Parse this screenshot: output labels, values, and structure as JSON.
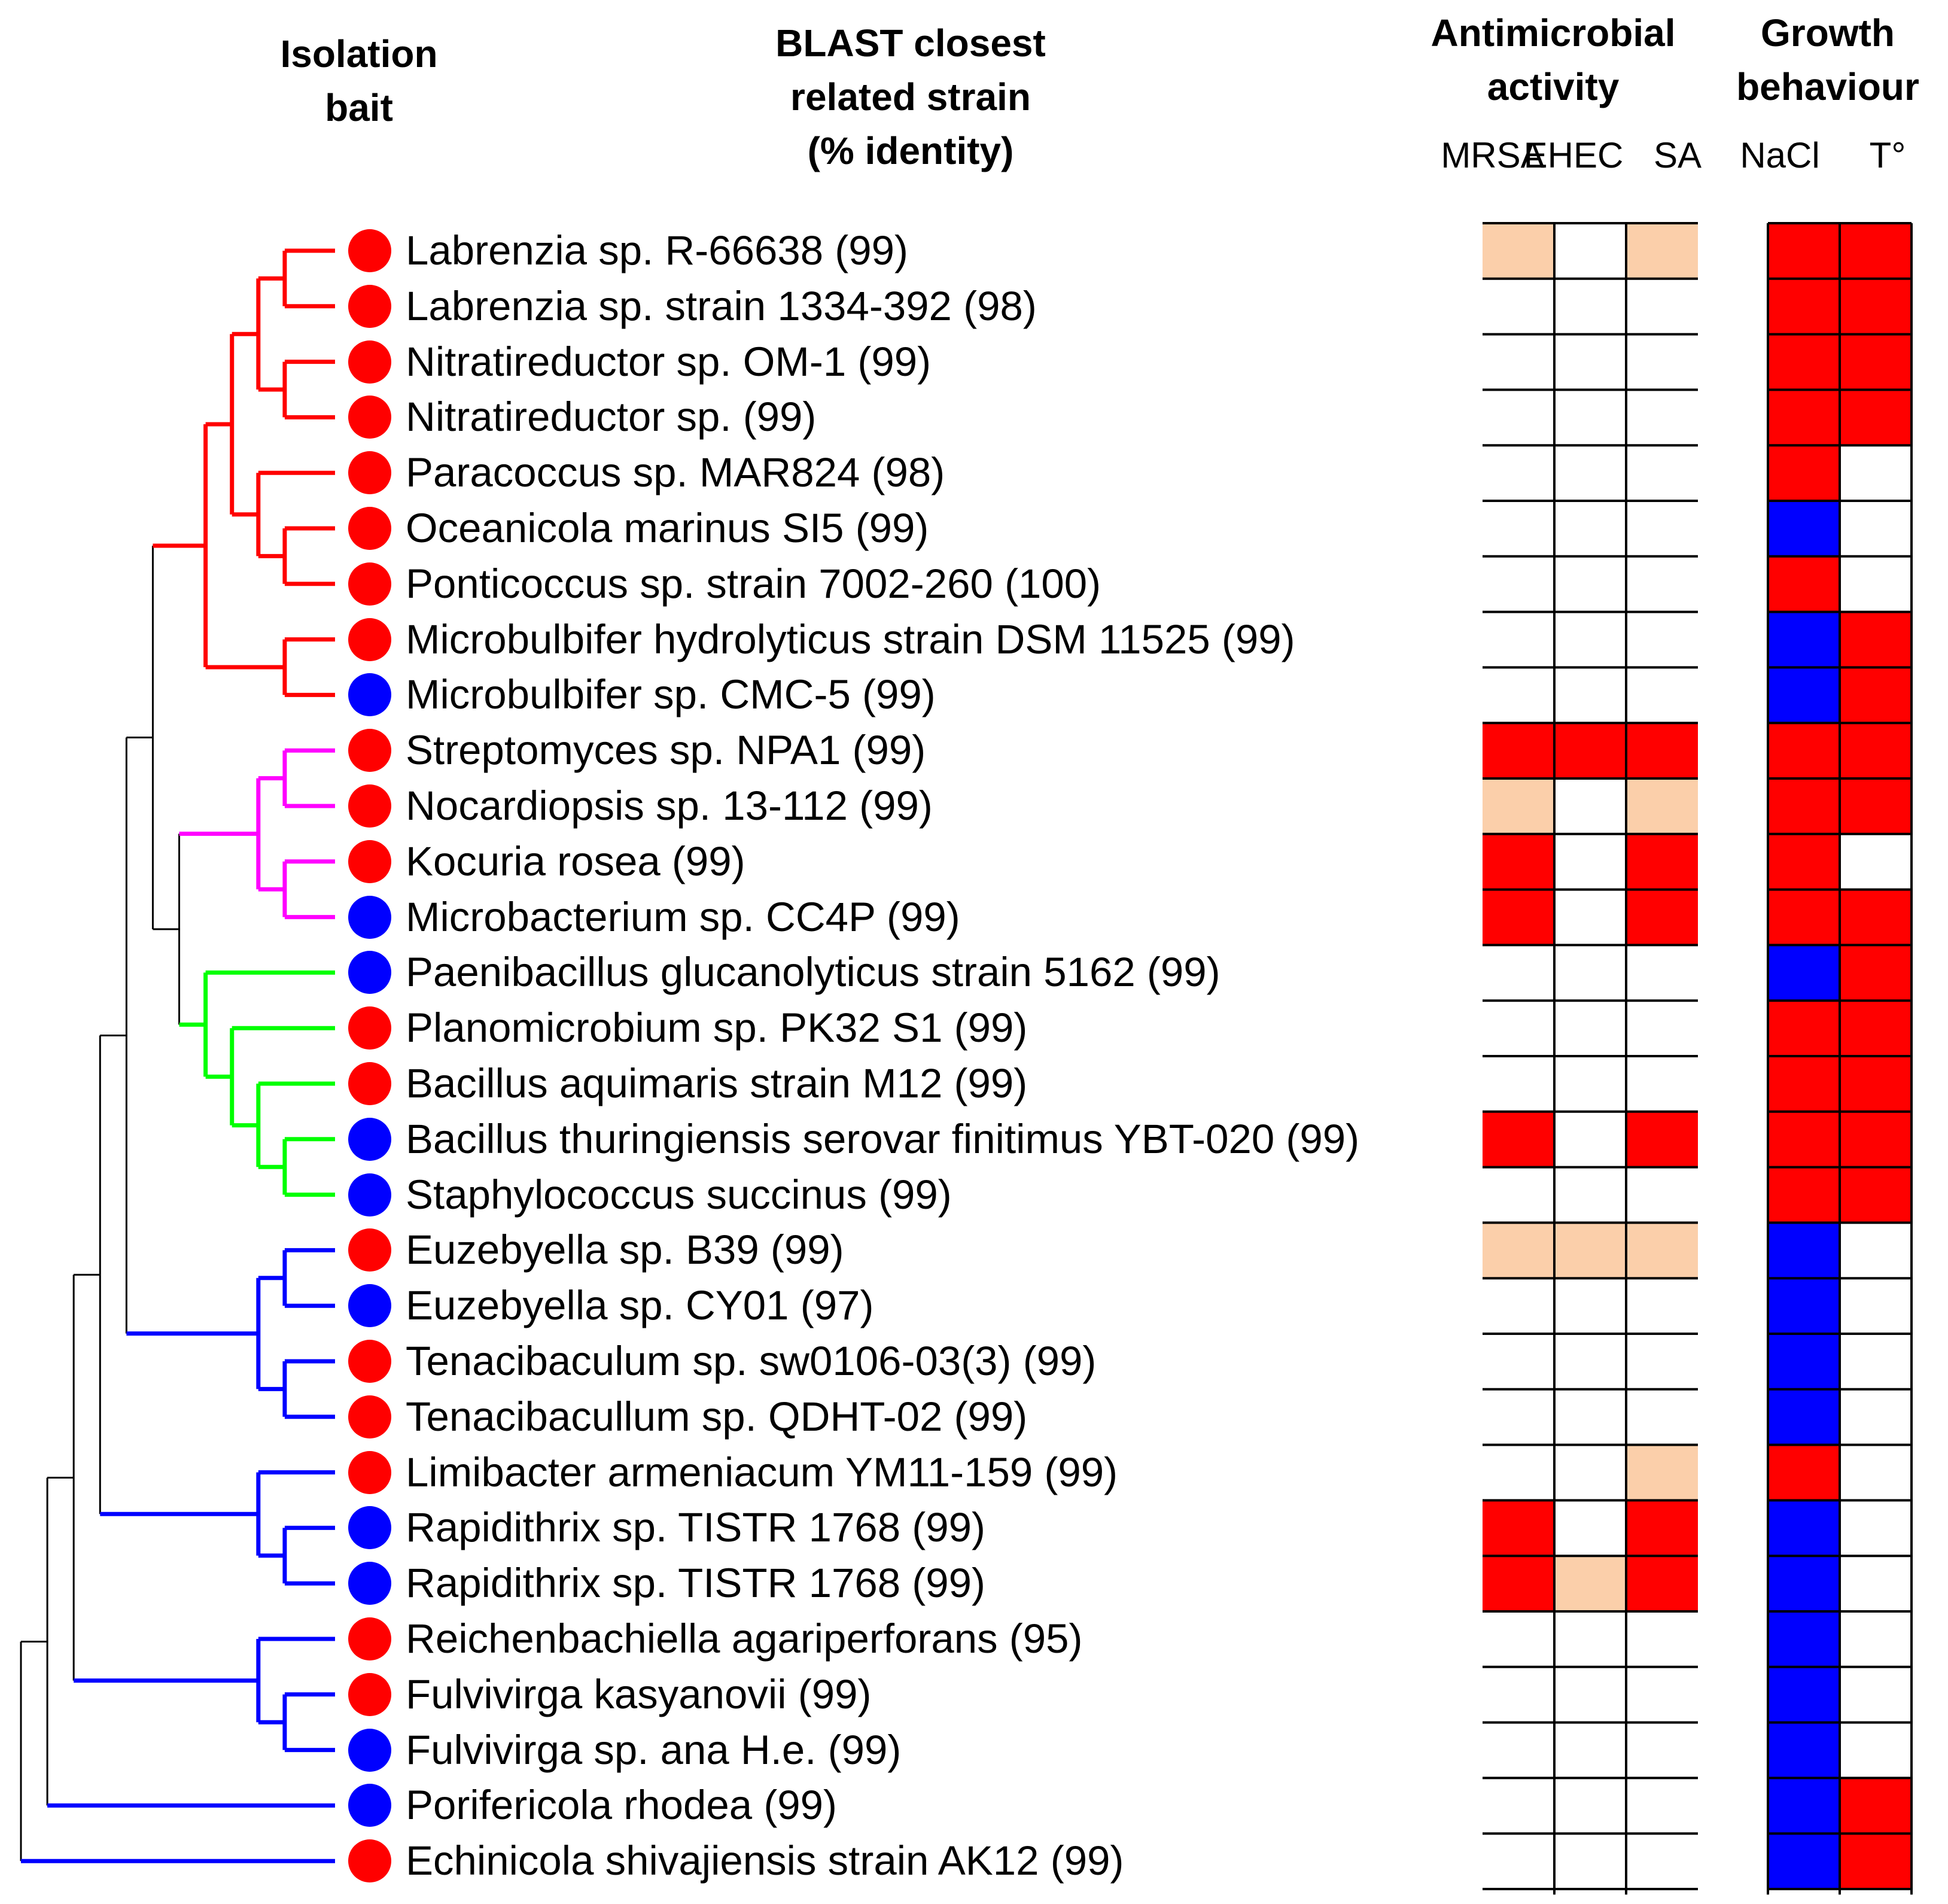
{
  "headers": {
    "isolation_bait": [
      "Isolation",
      "bait"
    ],
    "blast": [
      "BLAST closest",
      "related strain",
      "(% identity)"
    ],
    "antimicrobial": [
      "Antimicrobial",
      "activity"
    ],
    "growth": [
      "Growth",
      "behaviour"
    ]
  },
  "columns": {
    "antimicrobial": [
      "MRSA",
      "EHEC",
      "SA"
    ],
    "growth": [
      "NaCl",
      "T°"
    ]
  },
  "colors": {
    "red": "#ff0000",
    "blue": "#0000ff",
    "magenta": "#ff00ff",
    "green": "#00ff00",
    "peach": "#fbcfaa",
    "black": "#000000",
    "white": "#ffffff"
  },
  "strains": [
    {
      "name": "Labrenzia sp. R-66638 (99)",
      "bait": "red",
      "anti": [
        "peach",
        "white",
        "peach"
      ],
      "growth": [
        "red",
        "red"
      ]
    },
    {
      "name": "Labrenzia sp. strain 1334-392 (98)",
      "bait": "red",
      "anti": [
        "white",
        "white",
        "white"
      ],
      "growth": [
        "red",
        "red"
      ]
    },
    {
      "name": "Nitratireductor sp. OM-1 (99)",
      "bait": "red",
      "anti": [
        "white",
        "white",
        "white"
      ],
      "growth": [
        "red",
        "red"
      ]
    },
    {
      "name": "Nitratireductor sp. (99)",
      "bait": "red",
      "anti": [
        "white",
        "white",
        "white"
      ],
      "growth": [
        "red",
        "red"
      ]
    },
    {
      "name": "Paracoccus sp. MAR824 (98)",
      "bait": "red",
      "anti": [
        "white",
        "white",
        "white"
      ],
      "growth": [
        "red",
        "white"
      ]
    },
    {
      "name": "Oceanicola marinus SI5 (99)",
      "bait": "red",
      "anti": [
        "white",
        "white",
        "white"
      ],
      "growth": [
        "blue",
        "white"
      ]
    },
    {
      "name": "Ponticoccus sp. strain 7002-260 (100)",
      "bait": "red",
      "anti": [
        "white",
        "white",
        "white"
      ],
      "growth": [
        "red",
        "white"
      ]
    },
    {
      "name": "Microbulbifer hydrolyticus strain DSM 11525 (99)",
      "bait": "red",
      "anti": [
        "white",
        "white",
        "white"
      ],
      "growth": [
        "blue",
        "red"
      ]
    },
    {
      "name": "Microbulbifer sp. CMC-5 (99)",
      "bait": "blue",
      "anti": [
        "white",
        "white",
        "white"
      ],
      "growth": [
        "blue",
        "red"
      ]
    },
    {
      "name": "Streptomyces sp. NPA1 (99)",
      "bait": "red",
      "anti": [
        "red",
        "red",
        "red"
      ],
      "growth": [
        "red",
        "red"
      ]
    },
    {
      "name": "Nocardiopsis sp. 13-112 (99)",
      "bait": "red",
      "anti": [
        "peach",
        "white",
        "peach"
      ],
      "growth": [
        "red",
        "red"
      ]
    },
    {
      "name": "Kocuria rosea (99)",
      "bait": "red",
      "anti": [
        "red",
        "white",
        "red"
      ],
      "growth": [
        "red",
        "white"
      ]
    },
    {
      "name": "Microbacterium sp. CC4P (99)",
      "bait": "blue",
      "anti": [
        "red",
        "white",
        "red"
      ],
      "growth": [
        "red",
        "red"
      ]
    },
    {
      "name": "Paenibacillus glucanolyticus strain 5162 (99)",
      "bait": "blue",
      "anti": [
        "white",
        "white",
        "white"
      ],
      "growth": [
        "blue",
        "red"
      ]
    },
    {
      "name": "Planomicrobium sp. PK32 S1 (99)",
      "bait": "red",
      "anti": [
        "white",
        "white",
        "white"
      ],
      "growth": [
        "red",
        "red"
      ]
    },
    {
      "name": "Bacillus aquimaris strain M12 (99)",
      "bait": "red",
      "anti": [
        "white",
        "white",
        "white"
      ],
      "growth": [
        "red",
        "red"
      ]
    },
    {
      "name": "Bacillus thuringiensis serovar finitimus YBT-020 (99)",
      "bait": "blue",
      "anti": [
        "red",
        "white",
        "red"
      ],
      "growth": [
        "red",
        "red"
      ]
    },
    {
      "name": "Staphylococcus succinus (99)",
      "bait": "blue",
      "anti": [
        "white",
        "white",
        "white"
      ],
      "growth": [
        "red",
        "red"
      ]
    },
    {
      "name": "Euzebyella sp. B39 (99)",
      "bait": "red",
      "anti": [
        "peach",
        "peach",
        "peach"
      ],
      "growth": [
        "blue",
        "white"
      ]
    },
    {
      "name": "Euzebyella sp. CY01 (97)",
      "bait": "blue",
      "anti": [
        "white",
        "white",
        "white"
      ],
      "growth": [
        "blue",
        "white"
      ]
    },
    {
      "name": "Tenacibaculum sp. sw0106-03(3) (99)",
      "bait": "red",
      "anti": [
        "white",
        "white",
        "white"
      ],
      "growth": [
        "blue",
        "white"
      ]
    },
    {
      "name": "Tenacibacullum sp. QDHT-02 (99)",
      "bait": "red",
      "anti": [
        "white",
        "white",
        "white"
      ],
      "growth": [
        "blue",
        "white"
      ]
    },
    {
      "name": "Limibacter armeniacum YM11-159 (99)",
      "bait": "red",
      "anti": [
        "white",
        "white",
        "peach"
      ],
      "growth": [
        "red",
        "white"
      ]
    },
    {
      "name": "Rapidithrix sp. TISTR 1768 (99)",
      "bait": "blue",
      "anti": [
        "red",
        "white",
        "red"
      ],
      "growth": [
        "blue",
        "white"
      ]
    },
    {
      "name": "Rapidithrix sp. TISTR 1768 (99)",
      "bait": "blue",
      "anti": [
        "red",
        "peach",
        "red"
      ],
      "growth": [
        "blue",
        "white"
      ]
    },
    {
      "name": "Reichenbachiella agariperforans (95)",
      "bait": "red",
      "anti": [
        "white",
        "white",
        "white"
      ],
      "growth": [
        "blue",
        "white"
      ]
    },
    {
      "name": "Fulvivirga kasyanovii (99)",
      "bait": "red",
      "anti": [
        "white",
        "white",
        "white"
      ],
      "growth": [
        "blue",
        "white"
      ]
    },
    {
      "name": "Fulvivirga sp. ana H.e. (99)",
      "bait": "blue",
      "anti": [
        "white",
        "white",
        "white"
      ],
      "growth": [
        "blue",
        "white"
      ]
    },
    {
      "name": "Porifericola rhodea (99)",
      "bait": "blue",
      "anti": [
        "white",
        "white",
        "white"
      ],
      "growth": [
        "blue",
        "red"
      ]
    },
    {
      "name": "Echinicola shivajiensis strain AK12 (99)",
      "bait": "red",
      "anti": [
        "white",
        "white",
        "white"
      ],
      "growth": [
        "blue",
        "red"
      ]
    }
  ],
  "tree": {
    "clade_colors": [
      "red",
      "red",
      "red",
      "red",
      "red",
      "red",
      "red",
      "red",
      "red",
      "magenta",
      "magenta",
      "magenta",
      "magenta",
      "green",
      "green",
      "green",
      "green",
      "green",
      "blue",
      "blue",
      "blue",
      "blue",
      "blue",
      "blue",
      "blue",
      "blue",
      "blue",
      "blue",
      "blue",
      "blue"
    ],
    "newick": "((((((((((0,1),(2,3)),(4,(5,6))),(7,8)),(((9,10),(11,12)),(13,(14,(15,(16,17)))))),((18,19),(20,21))),(22,(23,24))),(25,(26,27))),28),29)"
  }
}
